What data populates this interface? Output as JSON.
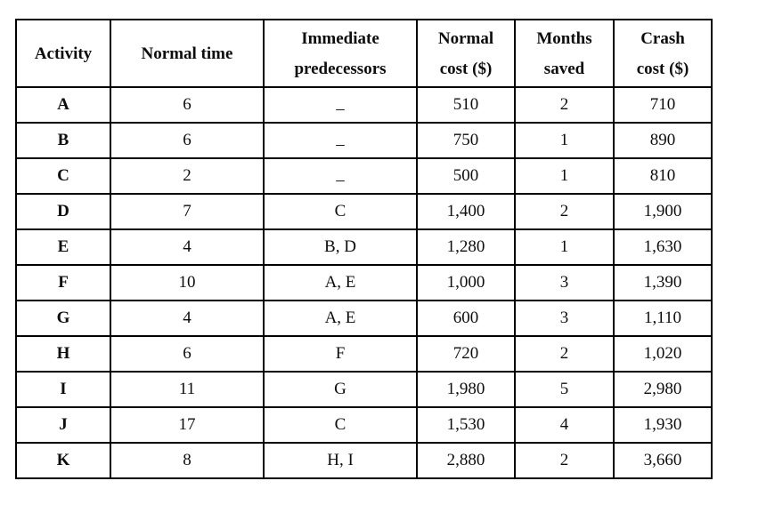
{
  "table": {
    "headers": {
      "activity": [
        "Activity"
      ],
      "normal_time": [
        "Normal time"
      ],
      "predecessors": [
        "Immediate",
        "predecessors"
      ],
      "normal_cost": [
        "Normal",
        "cost ($)"
      ],
      "months_saved": [
        "Months",
        "saved"
      ],
      "crash_cost": [
        "Crash",
        "cost ($)"
      ]
    },
    "rows": [
      {
        "activity": "A",
        "normal_time": "6",
        "predecessors": "–",
        "normal_cost": "510",
        "months_saved": "2",
        "crash_cost": "710"
      },
      {
        "activity": "B",
        "normal_time": "6",
        "predecessors": "–",
        "normal_cost": "750",
        "months_saved": "1",
        "crash_cost": "890"
      },
      {
        "activity": "C",
        "normal_time": "2",
        "predecessors": "–",
        "normal_cost": "500",
        "months_saved": "1",
        "crash_cost": "810"
      },
      {
        "activity": "D",
        "normal_time": "7",
        "predecessors": "C",
        "normal_cost": "1,400",
        "months_saved": "2",
        "crash_cost": "1,900"
      },
      {
        "activity": "E",
        "normal_time": "4",
        "predecessors": "B, D",
        "normal_cost": "1,280",
        "months_saved": "1",
        "crash_cost": "1,630"
      },
      {
        "activity": "F",
        "normal_time": "10",
        "predecessors": "A, E",
        "normal_cost": "1,000",
        "months_saved": "3",
        "crash_cost": "1,390"
      },
      {
        "activity": "G",
        "normal_time": "4",
        "predecessors": "A, E",
        "normal_cost": "600",
        "months_saved": "3",
        "crash_cost": "1,110"
      },
      {
        "activity": "H",
        "normal_time": "6",
        "predecessors": "F",
        "normal_cost": "720",
        "months_saved": "2",
        "crash_cost": "1,020"
      },
      {
        "activity": "I",
        "normal_time": "11",
        "predecessors": "G",
        "normal_cost": "1,980",
        "months_saved": "5",
        "crash_cost": "2,980"
      },
      {
        "activity": "J",
        "normal_time": "17",
        "predecessors": "C",
        "normal_cost": "1,530",
        "months_saved": "4",
        "crash_cost": "1,930"
      },
      {
        "activity": "K",
        "normal_time": "8",
        "predecessors": "H, I",
        "normal_cost": "2,880",
        "months_saved": "2",
        "crash_cost": "3,660"
      }
    ]
  },
  "colors": {
    "border": "#000000",
    "text": "#0d0d0d",
    "background": "#ffffff"
  }
}
